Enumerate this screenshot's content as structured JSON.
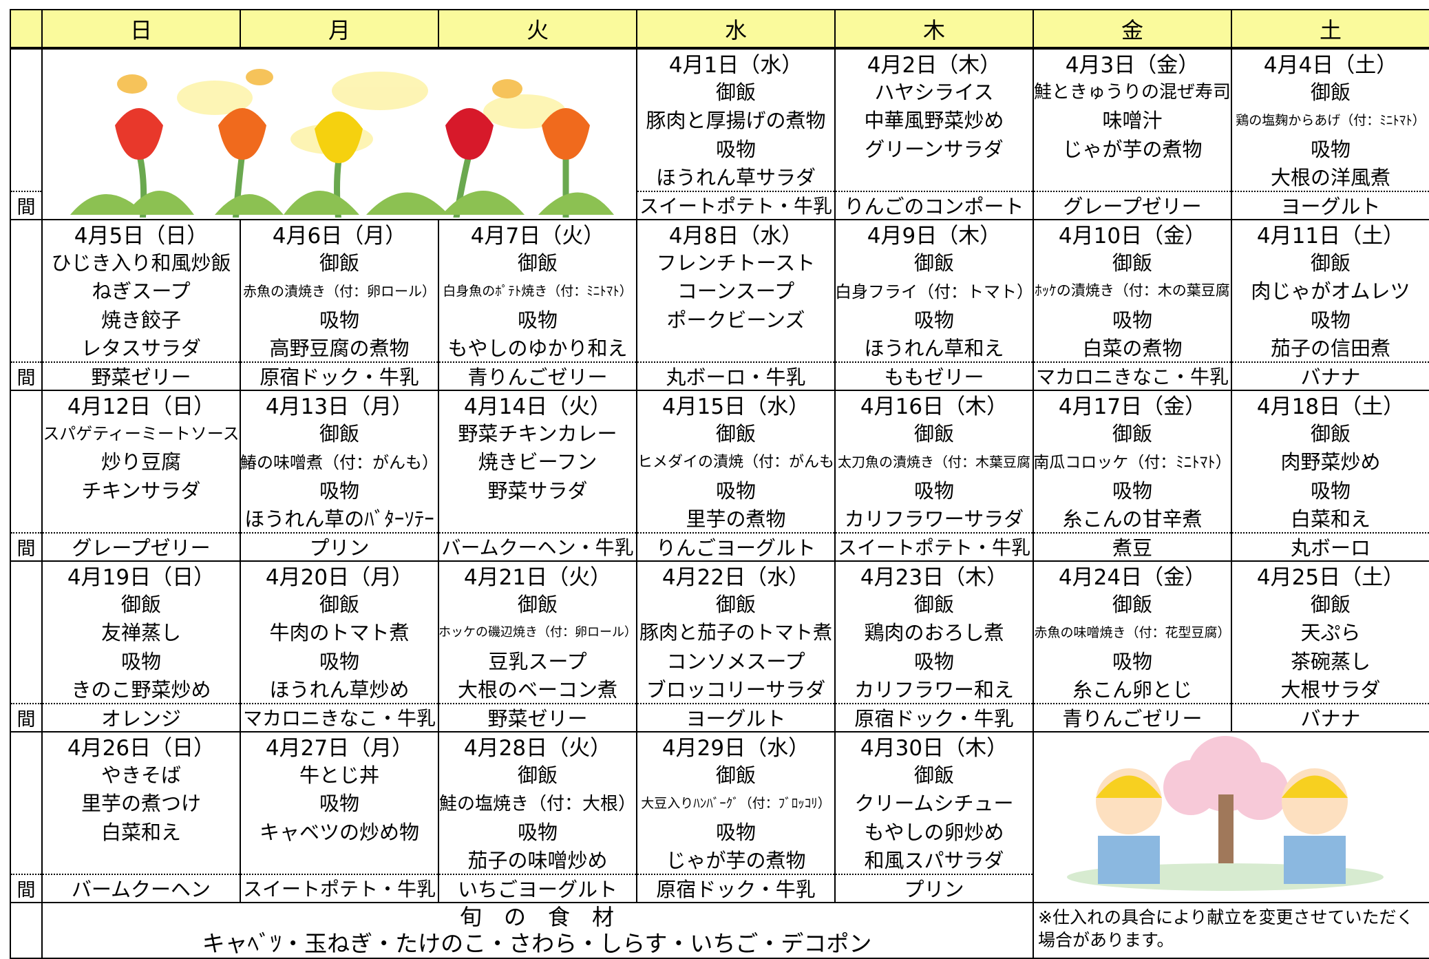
{
  "header": {
    "days": [
      "日",
      "月",
      "火",
      "水",
      "木",
      "金",
      "土"
    ]
  },
  "snack_label": "間",
  "weeks": [
    {
      "cells": [
        null,
        null,
        null,
        {
          "date": "4月1日（水）",
          "items": [
            "御飯",
            "豚肉と厚揚げの煮物",
            "吸物",
            "ほうれん草サラダ"
          ],
          "snack": "スイートポテト・牛乳"
        },
        {
          "date": "4月2日（木）",
          "items": [
            "ハヤシライス",
            "中華風野菜炒め",
            "グリーンサラダ"
          ],
          "snack": "りんごのコンポート"
        },
        {
          "date": "4月3日（金）",
          "items": [
            "鮭ときゅうりの混ぜ寿司",
            "味噌汁",
            "じゃが芋の煮物"
          ],
          "snack": "グレープゼリー"
        },
        {
          "date": "4月4日（土）",
          "items": [
            "御飯",
            "鶏の塩麹からあげ（付：ﾐﾆﾄﾏﾄ）",
            "吸物",
            "大根の洋風煮"
          ],
          "snack": "ヨーグルト"
        }
      ]
    },
    {
      "cells": [
        {
          "date": "4月5日（日）",
          "items": [
            "ひじき入り和風炒飯",
            "ねぎスープ",
            "焼き餃子",
            "レタスサラダ"
          ],
          "snack": "野菜ゼリー"
        },
        {
          "date": "4月6日（月）",
          "items": [
            "御飯",
            "赤魚の漬焼き（付：卵ロール）",
            "吸物",
            "高野豆腐の煮物"
          ],
          "snack": "原宿ドック・牛乳"
        },
        {
          "date": "4月7日（火）",
          "items": [
            "御飯",
            "白身魚のﾎﾟﾃﾄ焼き（付：ﾐﾆﾄﾏﾄ）",
            "吸物",
            "もやしのゆかり和え"
          ],
          "snack": "青りんごゼリー"
        },
        {
          "date": "4月8日（水）",
          "items": [
            "フレンチトースト",
            "コーンスープ",
            "ポークビーンズ"
          ],
          "snack": "丸ボーロ・牛乳"
        },
        {
          "date": "4月9日（木）",
          "items": [
            "御飯",
            "白身フライ（付：トマト）",
            "吸物",
            "ほうれん草和え"
          ],
          "snack": "ももゼリー"
        },
        {
          "date": "4月10日（金）",
          "items": [
            "御飯",
            "ﾎｯｹの漬焼き（付：木の葉豆腐",
            "吸物",
            "白菜の煮物"
          ],
          "snack": "マカロニきなこ・牛乳"
        },
        {
          "date": "4月11日（土）",
          "items": [
            "御飯",
            "肉じゃがオムレツ",
            "吸物",
            "茄子の信田煮"
          ],
          "snack": "バナナ"
        }
      ]
    },
    {
      "cells": [
        {
          "date": "4月12日（日）",
          "items": [
            "スパゲティーミートソース",
            "炒り豆腐",
            "チキンサラダ"
          ],
          "snack": "グレープゼリー"
        },
        {
          "date": "4月13日（月）",
          "items": [
            "御飯",
            "鰆の味噌煮（付：がんも）",
            "吸物",
            "ほうれん草のﾊﾞﾀｰｿﾃｰ"
          ],
          "snack": "プリン"
        },
        {
          "date": "4月14日（火）",
          "items": [
            "野菜チキンカレー",
            "焼きビーフン",
            "野菜サラダ"
          ],
          "snack": "バームクーヘン・牛乳"
        },
        {
          "date": "4月15日（水）",
          "items": [
            "御飯",
            "ヒメダイの漬焼（付：がんも",
            "吸物",
            "里芋の煮物"
          ],
          "snack": "りんごヨーグルト"
        },
        {
          "date": "4月16日（木）",
          "items": [
            "御飯",
            "太刀魚の漬焼き（付：木葉豆腐",
            "吸物",
            "カリフラワーサラダ"
          ],
          "snack": "スイートポテト・牛乳"
        },
        {
          "date": "4月17日（金）",
          "items": [
            "御飯",
            "南瓜コロッケ（付：ﾐﾆﾄﾏﾄ）",
            "吸物",
            "糸こんの甘辛煮"
          ],
          "snack": "煮豆"
        },
        {
          "date": "4月18日（土）",
          "items": [
            "御飯",
            "肉野菜炒め",
            "吸物",
            "白菜和え"
          ],
          "snack": "丸ボーロ"
        }
      ]
    },
    {
      "cells": [
        {
          "date": "4月19日（日）",
          "items": [
            "御飯",
            "友禅蒸し",
            "吸物",
            "きのこ野菜炒め"
          ],
          "snack": "オレンジ"
        },
        {
          "date": "4月20日（月）",
          "items": [
            "御飯",
            "牛肉のトマト煮",
            "吸物",
            "ほうれん草炒め"
          ],
          "snack": "マカロニきなこ・牛乳"
        },
        {
          "date": "4月21日（火）",
          "items": [
            "御飯",
            "ホッケの磯辺焼き（付：卵ロール）",
            "豆乳スープ",
            "大根のベーコン煮"
          ],
          "snack": "野菜ゼリー"
        },
        {
          "date": "4月22日（水）",
          "items": [
            "御飯",
            "豚肉と茄子のトマト煮",
            "コンソメスープ",
            "ブロッコリーサラダ"
          ],
          "snack": "ヨーグルト"
        },
        {
          "date": "4月23日（木）",
          "items": [
            "御飯",
            "鶏肉のおろし煮",
            "吸物",
            "カリフラワー和え"
          ],
          "snack": "原宿ドック・牛乳"
        },
        {
          "date": "4月24日（金）",
          "items": [
            "御飯",
            "赤魚の味噌焼き（付：花型豆腐）",
            "吸物",
            "糸こん卵とじ"
          ],
          "snack": "青りんごゼリー"
        },
        {
          "date": "4月25日（土）",
          "items": [
            "御飯",
            "天ぷら",
            "茶碗蒸し",
            "大根サラダ"
          ],
          "snack": "バナナ"
        }
      ]
    },
    {
      "cells": [
        {
          "date": "4月26日（日）",
          "items": [
            "やきそば",
            "里芋の煮つけ",
            "白菜和え"
          ],
          "snack": "バームクーヘン"
        },
        {
          "date": "4月27日（月）",
          "items": [
            "牛とじ丼",
            "吸物",
            "キャベツの炒め物"
          ],
          "snack": "スイートポテト・牛乳"
        },
        {
          "date": "4月28日（火）",
          "items": [
            "御飯",
            "鮭の塩焼き（付：大根）",
            "吸物",
            "茄子の味噌炒め"
          ],
          "snack": "いちごヨーグルト"
        },
        {
          "date": "4月29日（水）",
          "items": [
            "御飯",
            "大豆入りﾊﾝﾊﾞｰｸﾞ（付：ﾌﾞﾛｯｺﾘ）",
            "吸物",
            "じゃが芋の煮物"
          ],
          "snack": "原宿ドック・牛乳"
        },
        {
          "date": "4月30日（木）",
          "items": [
            "御飯",
            "クリームシチュー",
            "もやしの卵炒め",
            "和風スパサラダ"
          ],
          "snack": "プリン"
        },
        null,
        null
      ]
    }
  ],
  "footer": {
    "title": "旬　の　食　材",
    "ingredients": "キャﾍﾞﾂ・玉ねぎ・たけのこ・さわら・しらす・いちご・デコポン",
    "note": "※仕入れの具合により献立を変更させていただく場合があります。"
  }
}
